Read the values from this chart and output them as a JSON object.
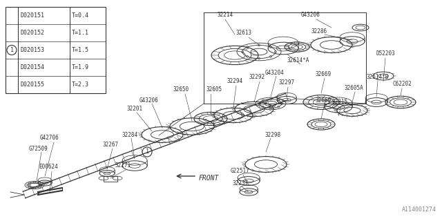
{
  "bg_color": "#ffffff",
  "diagram_color": "#333333",
  "table_data": [
    [
      "D020151",
      "T=0.4"
    ],
    [
      "D020152",
      "T=1.1"
    ],
    [
      "D020153",
      "T=1.5"
    ],
    [
      "D020154",
      "T=1.9"
    ],
    [
      "D020155",
      "T=2.3"
    ]
  ],
  "table_circle_row": 2,
  "watermark": "A114001274",
  "figsize": [
    6.4,
    3.2
  ],
  "dpi": 100
}
